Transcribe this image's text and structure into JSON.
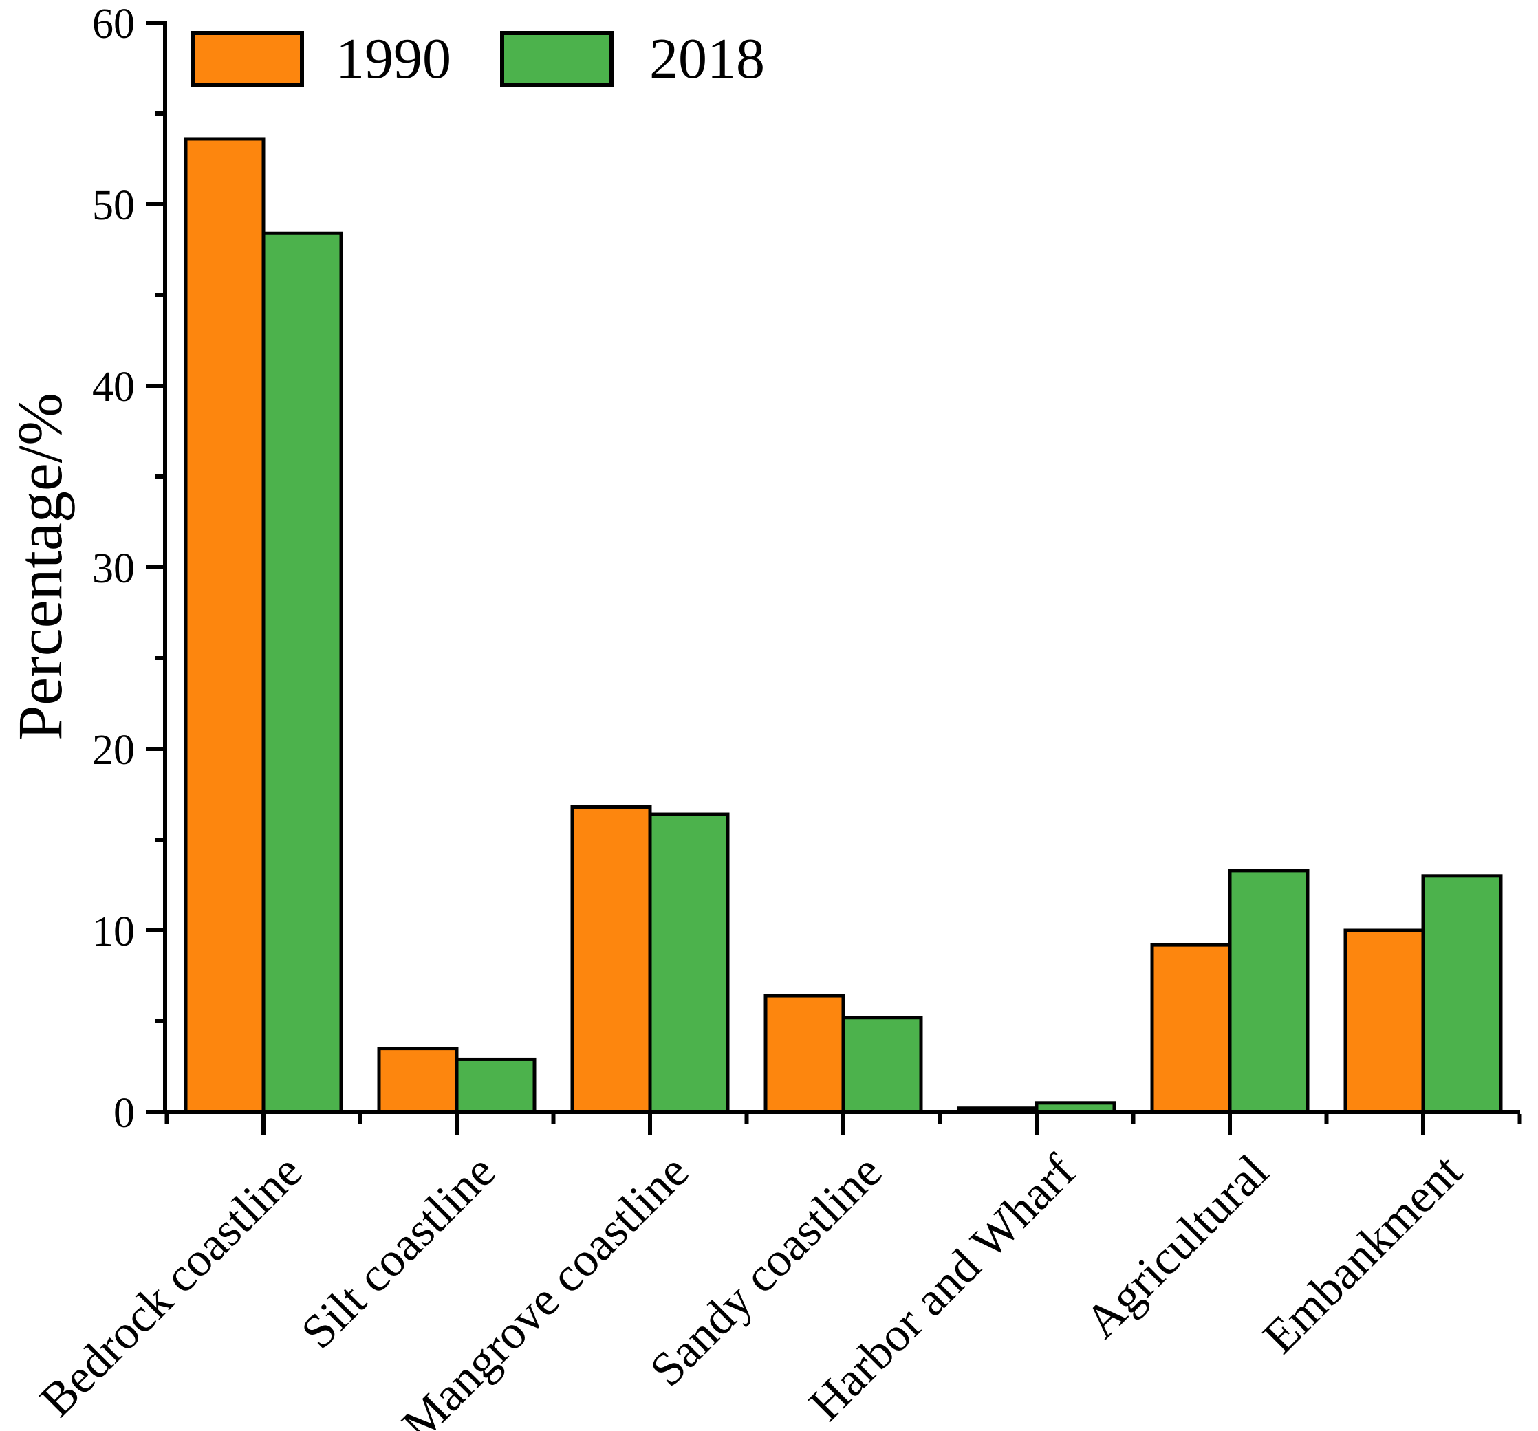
{
  "chart_data": {
    "type": "bar",
    "title": "",
    "xlabel": "",
    "ylabel": "Percentage/%",
    "ylim": [
      0,
      60
    ],
    "yticks": [
      0,
      10,
      20,
      30,
      40,
      50,
      60
    ],
    "yminor_step": 5,
    "grid": false,
    "legend_position": "top-left-inside",
    "categories": [
      "Bedrock coastline",
      "Silt coastline",
      "Mangrove coastline",
      "Sandy coastline",
      "Harbor and Wharf",
      "Agricultural",
      "Embankment"
    ],
    "series": [
      {
        "name": "1990",
        "color": "#FD860E",
        "values": [
          53.6,
          3.5,
          16.8,
          6.4,
          0.2,
          9.2,
          10.0
        ]
      },
      {
        "name": "2018",
        "color": "#4CB24C",
        "values": [
          48.4,
          2.9,
          16.4,
          5.2,
          0.5,
          13.3,
          13.0
        ]
      }
    ],
    "bar_outline_color": "#000000",
    "axis_color": "#000000"
  }
}
